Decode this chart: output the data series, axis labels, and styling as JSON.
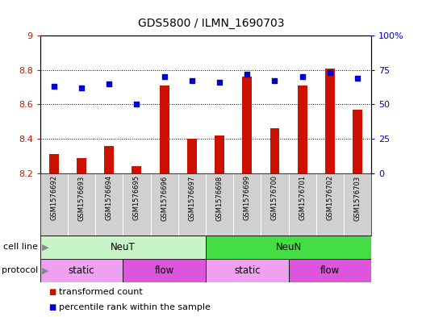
{
  "title": "GDS5800 / ILMN_1690703",
  "samples": [
    "GSM1576692",
    "GSM1576693",
    "GSM1576694",
    "GSM1576695",
    "GSM1576696",
    "GSM1576697",
    "GSM1576698",
    "GSM1576699",
    "GSM1576700",
    "GSM1576701",
    "GSM1576702",
    "GSM1576703"
  ],
  "transformed_count": [
    8.31,
    8.29,
    8.36,
    8.24,
    8.71,
    8.4,
    8.42,
    8.76,
    8.46,
    8.71,
    8.81,
    8.57
  ],
  "percentile_rank": [
    63,
    62,
    65,
    50,
    70,
    67,
    66,
    72,
    67,
    70,
    73,
    69
  ],
  "ylim_left": [
    8.2,
    9.0
  ],
  "ylim_right": [
    0,
    100
  ],
  "yticks_left": [
    8.2,
    8.4,
    8.6,
    8.8,
    9.0
  ],
  "ytick_labels_left": [
    "8.2",
    "8.4",
    "8.6",
    "8.8",
    "9"
  ],
  "yticks_right": [
    0,
    25,
    50,
    75,
    100
  ],
  "ytick_labels_right": [
    "0",
    "25",
    "50",
    "75",
    "100%"
  ],
  "hgrid_values": [
    8.4,
    8.6,
    8.8
  ],
  "cell_line_data": [
    {
      "label": "NeuT",
      "start": 0,
      "end": 6,
      "color": "#c8f5c8"
    },
    {
      "label": "NeuN",
      "start": 6,
      "end": 12,
      "color": "#44dd44"
    }
  ],
  "protocol_data": [
    {
      "label": "static",
      "start": 0,
      "end": 3,
      "color": "#f0a0f0"
    },
    {
      "label": "flow",
      "start": 3,
      "end": 6,
      "color": "#dd55dd"
    },
    {
      "label": "static",
      "start": 6,
      "end": 9,
      "color": "#f0a0f0"
    },
    {
      "label": "flow",
      "start": 9,
      "end": 12,
      "color": "#dd55dd"
    }
  ],
  "bar_color": "#cc1100",
  "dot_color": "#0000cc",
  "plot_bg_color": "#ffffff",
  "sample_box_color": "#d0d0d0",
  "fig_bg_color": "#ffffff",
  "left_label_color": "#888888",
  "arrow_color": "#888888",
  "title_fontsize": 10,
  "axis_fontsize": 8,
  "sample_fontsize": 6,
  "legend_fontsize": 8,
  "bar_width": 0.35
}
